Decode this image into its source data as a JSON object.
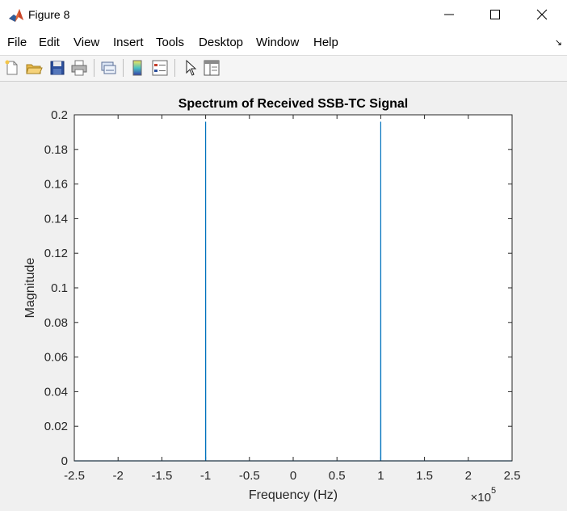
{
  "window": {
    "title": "Figure 8",
    "icons": [
      "matlab-icon",
      "minimize-icon",
      "maximize-icon",
      "close-icon"
    ]
  },
  "menu": {
    "items": [
      "File",
      "Edit",
      "View",
      "Insert",
      "Tools",
      "Desktop",
      "Window",
      "Help"
    ],
    "arrow_icon": "dock-arrow-icon"
  },
  "toolbar": {
    "buttons": [
      "new-figure-icon",
      "open-file-icon",
      "save-icon",
      "print-icon",
      "link-plot-icon",
      "insert-colorbar-icon",
      "insert-legend-icon",
      "pointer-icon",
      "property-editor-icon"
    ]
  },
  "chart_data": {
    "type": "line",
    "title": "Spectrum of Received SSB-TC Signal",
    "xlabel": "Frequency (Hz)",
    "ylabel": "Magnitude",
    "x_multiplier": "×10",
    "x_multiplier_exponent": "5",
    "xlim": [
      -250000,
      250000
    ],
    "ylim": [
      0,
      0.2
    ],
    "x_ticks": [
      -250000,
      -200000,
      -150000,
      -100000,
      -50000,
      0,
      50000,
      100000,
      150000,
      200000,
      250000
    ],
    "x_tick_labels": [
      "-2.5",
      "-2",
      "-1.5",
      "-1",
      "-0.5",
      "0",
      "0.5",
      "1",
      "1.5",
      "2",
      "2.5"
    ],
    "y_ticks": [
      0,
      0.02,
      0.04,
      0.06,
      0.08,
      0.1,
      0.12,
      0.14,
      0.16,
      0.18,
      0.2
    ],
    "y_tick_labels": [
      "0",
      "0.02",
      "0.04",
      "0.06",
      "0.08",
      "0.1",
      "0.12",
      "0.14",
      "0.16",
      "0.18",
      "0.2"
    ],
    "grid": false,
    "series": [
      {
        "color": "#0072bd",
        "x": [
          -250000,
          -100100,
          -100000,
          -99900,
          99900,
          100000,
          100100,
          250000
        ],
        "y": [
          0,
          0,
          0.196,
          0,
          0,
          0.196,
          0,
          0
        ]
      }
    ]
  }
}
